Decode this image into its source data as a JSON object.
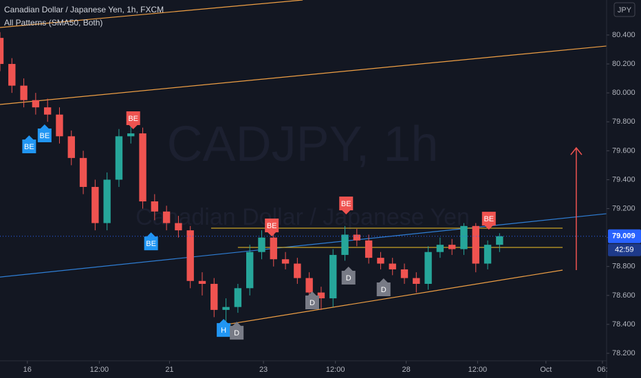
{
  "chart_data": {
    "type": "candlestick",
    "title": "Canadian Dollar / Japanese Yen, 1h, FXCM",
    "subtitle": "All Patterns (SMA50, Both)",
    "watermark": "CADJPY, 1h",
    "watermark_subtitle": "Canadian Dollar / Japanese Yen",
    "currency": "JPY",
    "up_color": "#26a69a",
    "down_color": "#ef5350",
    "x": [
      0,
      2,
      4,
      6,
      8,
      10,
      12,
      14,
      16,
      18,
      20,
      22,
      24,
      26,
      28,
      30,
      32,
      34,
      36,
      38,
      40,
      42,
      44,
      46,
      48,
      50,
      52,
      54,
      56,
      58,
      60,
      62,
      64,
      66,
      68,
      70,
      72,
      74,
      76,
      78,
      80,
      82,
      84
    ],
    "open": [
      80.38,
      80.2,
      80.05,
      79.95,
      79.9,
      79.85,
      79.7,
      79.55,
      79.35,
      79.1,
      79.4,
      79.7,
      79.72,
      79.25,
      79.18,
      79.1,
      79.05,
      78.7,
      78.68,
      78.5,
      78.52,
      78.65,
      78.9,
      79.0,
      78.85,
      78.82,
      78.72,
      78.62,
      78.58,
      78.88,
      79.02,
      78.98,
      78.86,
      78.82,
      78.78,
      78.72,
      78.68,
      78.9,
      78.95,
      78.92,
      79.08,
      78.82,
      78.95
    ],
    "high": [
      80.42,
      80.24,
      80.1,
      80.0,
      79.96,
      79.9,
      79.74,
      79.6,
      79.4,
      79.45,
      79.75,
      79.78,
      79.76,
      79.3,
      79.22,
      79.15,
      79.08,
      78.76,
      78.72,
      78.58,
      78.68,
      78.95,
      79.05,
      79.03,
      78.9,
      78.86,
      78.76,
      78.66,
      78.92,
      79.08,
      79.06,
      79.02,
      78.9,
      78.86,
      78.82,
      78.76,
      78.94,
      79.0,
      78.99,
      79.1,
      79.1,
      78.98,
      79.03
    ],
    "low": [
      80.15,
      80.0,
      79.9,
      79.85,
      79.8,
      79.65,
      79.5,
      79.3,
      79.05,
      79.05,
      79.35,
      79.65,
      79.2,
      79.12,
      79.05,
      79.0,
      78.65,
      78.6,
      78.45,
      78.42,
      78.48,
      78.6,
      78.85,
      78.8,
      78.78,
      78.68,
      78.58,
      78.5,
      78.52,
      78.84,
      78.94,
      78.82,
      78.78,
      78.74,
      78.68,
      78.62,
      78.64,
      78.86,
      78.88,
      78.88,
      78.76,
      78.78,
      78.9
    ],
    "close": [
      80.2,
      80.05,
      79.95,
      79.9,
      79.85,
      79.7,
      79.55,
      79.35,
      79.1,
      79.4,
      79.7,
      79.72,
      79.25,
      79.18,
      79.1,
      79.05,
      78.7,
      78.68,
      78.5,
      78.52,
      78.65,
      78.9,
      79.0,
      78.85,
      78.82,
      78.72,
      78.62,
      78.58,
      78.88,
      79.02,
      78.98,
      78.86,
      78.82,
      78.78,
      78.72,
      78.68,
      78.9,
      78.95,
      78.92,
      79.08,
      78.82,
      78.95,
      79.009
    ],
    "last_price": {
      "value": 79.009,
      "label": "79.009"
    },
    "countdown": "42:59",
    "xlim": [
      0,
      102
    ],
    "ylim": [
      78.148,
      80.642
    ],
    "xticks": [
      {
        "value": 4.6,
        "label": "16"
      },
      {
        "value": 16.7,
        "label": "12:00"
      },
      {
        "value": 28.5,
        "label": "21"
      },
      {
        "value": 44.3,
        "label": "23"
      },
      {
        "value": 56.4,
        "label": "12:00"
      },
      {
        "value": 68.3,
        "label": "28"
      },
      {
        "value": 80.3,
        "label": "12:00"
      },
      {
        "value": 91.8,
        "label": "Oct"
      },
      {
        "value": 101.3,
        "label": "06:"
      }
    ],
    "yticks": [
      {
        "value": 80.4,
        "label": "80.400"
      },
      {
        "value": 80.2,
        "label": "80.200"
      },
      {
        "value": 80.0,
        "label": "80.000"
      },
      {
        "value": 79.8,
        "label": "79.800"
      },
      {
        "value": 79.6,
        "label": "79.600"
      },
      {
        "value": 79.4,
        "label": "79.400"
      },
      {
        "value": 79.2,
        "label": "79.200"
      },
      {
        "value": 79.0,
        "label": "79.000"
      },
      {
        "value": 78.8,
        "label": "78.800"
      },
      {
        "value": 78.6,
        "label": "78.600"
      },
      {
        "value": 78.4,
        "label": "78.400"
      },
      {
        "value": 78.2,
        "label": "78.200"
      }
    ],
    "trend_lines": [
      {
        "color": "#f0a045",
        "x": [
          0,
          50.9
        ],
        "y": [
          80.452,
          80.642
        ]
      },
      {
        "color": "#f0a045",
        "x": [
          0,
          102
        ],
        "y": [
          79.92,
          80.324
        ]
      },
      {
        "color": "#2f7fd6",
        "x": [
          0,
          102
        ],
        "y": [
          78.727,
          79.165
        ]
      },
      {
        "color": "#c9a227",
        "x": [
          35.5,
          94.6
        ],
        "y": [
          79.065,
          79.065
        ]
      },
      {
        "color": "#c9a227",
        "x": [
          40,
          94.6
        ],
        "y": [
          78.932,
          78.932
        ]
      },
      {
        "color": "#f0a045",
        "x": [
          38.2,
          94.6
        ],
        "y": [
          78.4,
          78.775
        ]
      }
    ],
    "arrow": {
      "color": "#ef5350",
      "x": [
        96.9,
        96.9
      ],
      "y": [
        78.775,
        79.62
      ]
    },
    "annotations": [
      {
        "label": "BE",
        "color": "#2196f3",
        "direction": "up",
        "x": 4.9,
        "y": 79.63
      },
      {
        "label": "BE",
        "color": "#2196f3",
        "direction": "up",
        "x": 7.5,
        "y": 79.706
      },
      {
        "label": "BE",
        "color": "#ef5350",
        "direction": "down",
        "x": 22.4,
        "y": 79.825
      },
      {
        "label": "BE",
        "color": "#2196f3",
        "direction": "up",
        "x": 25.4,
        "y": 78.96
      },
      {
        "label": "BE",
        "color": "#ef5350",
        "direction": "down",
        "x": 45.7,
        "y": 79.084
      },
      {
        "label": "BE",
        "color": "#ef5350",
        "direction": "down",
        "x": 58.2,
        "y": 79.236
      },
      {
        "label": "BE",
        "color": "#ef5350",
        "direction": "down",
        "x": 82.2,
        "y": 79.131
      },
      {
        "label": "D",
        "color": "#787b86",
        "direction": "up",
        "x": 58.6,
        "y": 78.723
      },
      {
        "label": "D",
        "color": "#787b86",
        "direction": "up",
        "x": 52.5,
        "y": 78.552
      },
      {
        "label": "D",
        "color": "#787b86",
        "direction": "up",
        "x": 64.5,
        "y": 78.642
      },
      {
        "label": "H",
        "color": "#2196f3",
        "direction": "up",
        "x": 37.6,
        "y": 78.361
      },
      {
        "label": "D",
        "color": "#787b86",
        "direction": "up",
        "x": 39.8,
        "y": 78.342
      }
    ]
  }
}
